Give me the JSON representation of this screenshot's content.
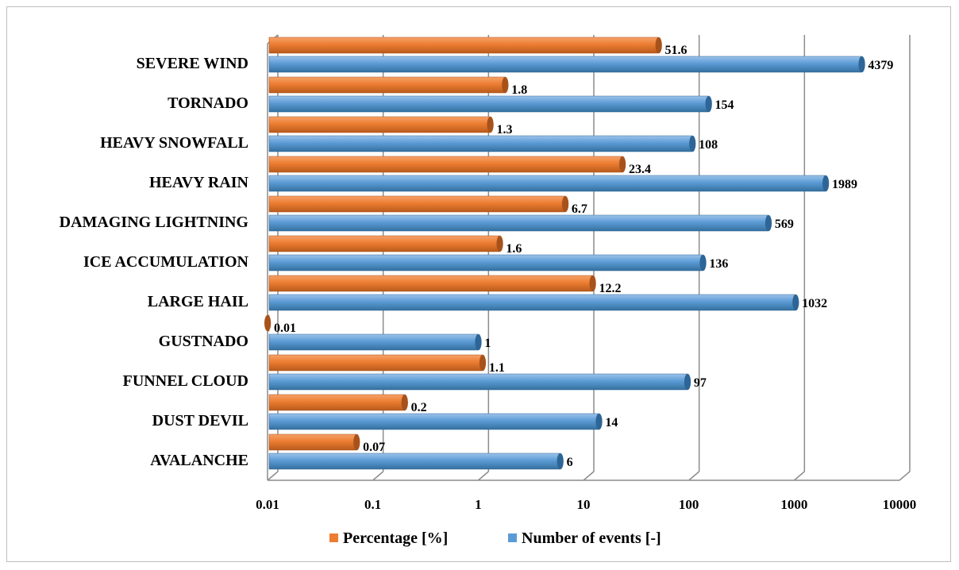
{
  "chart_data": {
    "type": "bar",
    "orientation": "horizontal",
    "x_scale": "log",
    "xlim": [
      0.01,
      10000
    ],
    "grid": true,
    "legend_position": "bottom",
    "tick_labels": [
      "0.01",
      "0.1",
      "1",
      "10",
      "100",
      "1000",
      "10000"
    ],
    "categories": [
      "SEVERE WIND",
      "TORNADO",
      "HEAVY SNOWFALL",
      "HEAVY RAIN",
      "DAMAGING LIGHTNING",
      "ICE ACCUMULATION",
      "LARGE HAIL",
      "GUSTNADO",
      "FUNNEL CLOUD",
      "DUST DEVIL",
      "AVALANCHE"
    ],
    "series": [
      {
        "name": "Percentage [%]",
        "color": "#ed7d31",
        "values": [
          51.6,
          1.8,
          1.3,
          23.4,
          6.7,
          1.6,
          12.2,
          0.01,
          1.1,
          0.2,
          0.07
        ],
        "labels": [
          "51.6",
          "1.8",
          "1.3",
          "23.4",
          "6.7",
          "1.6",
          "12.2",
          "0.01",
          "1.1",
          "0.2",
          "0.07"
        ]
      },
      {
        "name": "Number of events [-]",
        "color": "#5b9bd5",
        "values": [
          4379,
          154,
          108,
          1989,
          569,
          136,
          1032,
          1,
          97,
          14,
          6
        ],
        "labels": [
          "4379",
          "154",
          "108",
          "1989",
          "569",
          "136",
          "1032",
          "1",
          "97",
          "14",
          "6"
        ]
      }
    ]
  }
}
